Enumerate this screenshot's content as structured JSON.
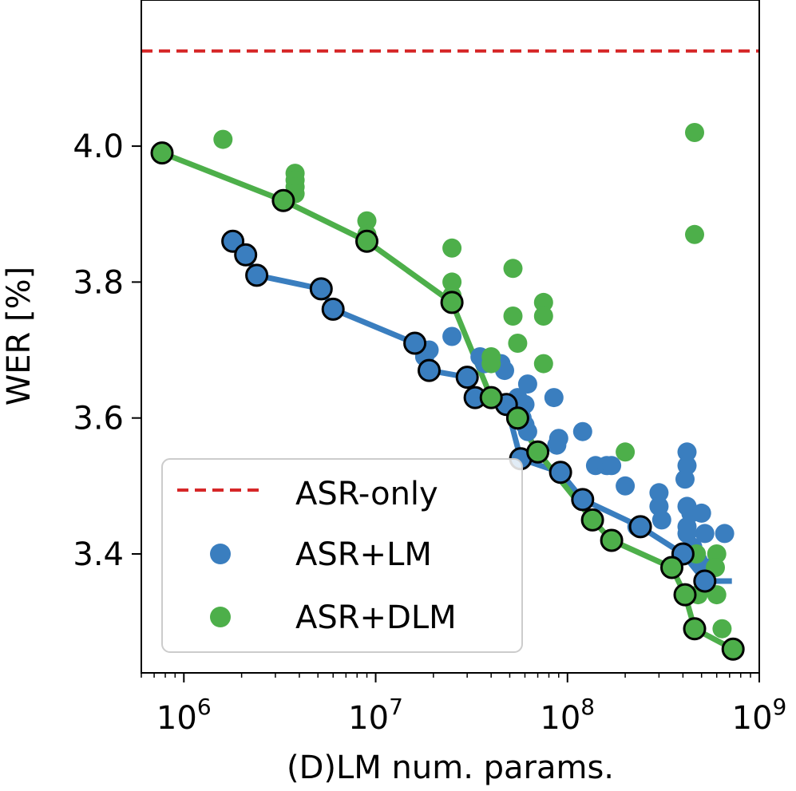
{
  "chart_data": {
    "type": "scatter",
    "title": "",
    "xlabel": "(D)LM num. params.",
    "ylabel": "WER [%]",
    "xscale": "log",
    "xlim": [
      600000,
      1000000000
    ],
    "ylim": [
      3.225,
      4.215
    ],
    "x_ticks": [
      {
        "value": 1000000,
        "base": "10",
        "exp": "6"
      },
      {
        "value": 10000000,
        "base": "10",
        "exp": "7"
      },
      {
        "value": 100000000,
        "base": "10",
        "exp": "8"
      },
      {
        "value": 1000000000,
        "base": "10",
        "exp": "9"
      }
    ],
    "y_ticks": [
      {
        "value": 3.4,
        "label": "3.4"
      },
      {
        "value": 3.6,
        "label": "3.6"
      },
      {
        "value": 3.8,
        "label": "3.8"
      },
      {
        "value": 4.0,
        "label": "4.0"
      }
    ],
    "legend_position": "bottom-left",
    "series": [
      {
        "name": "ASR-only",
        "kind": "hline",
        "color": "#d62728",
        "y": 4.14
      },
      {
        "name": "ASR+LM",
        "kind": "scatter+frontier",
        "color": "#3a7ebf",
        "points": [
          [
            25000000,
            3.72
          ],
          [
            19000000,
            3.7
          ],
          [
            18000000,
            3.69
          ],
          [
            35000000,
            3.69
          ],
          [
            37000000,
            3.68
          ],
          [
            45000000,
            3.68
          ],
          [
            47000000,
            3.67
          ],
          [
            55000000,
            3.63
          ],
          [
            62000000,
            3.65
          ],
          [
            60000000,
            3.62
          ],
          [
            58000000,
            3.6
          ],
          [
            60000000,
            3.59
          ],
          [
            62000000,
            3.58
          ],
          [
            85000000,
            3.63
          ],
          [
            90000000,
            3.57
          ],
          [
            88000000,
            3.56
          ],
          [
            120000000,
            3.58
          ],
          [
            140000000,
            3.53
          ],
          [
            160000000,
            3.53
          ],
          [
            170000000,
            3.53
          ],
          [
            200000000,
            3.5
          ],
          [
            230000000,
            3.44
          ],
          [
            300000000,
            3.49
          ],
          [
            300000000,
            3.47
          ],
          [
            310000000,
            3.45
          ],
          [
            420000000,
            3.55
          ],
          [
            420000000,
            3.53
          ],
          [
            410000000,
            3.51
          ],
          [
            420000000,
            3.47
          ],
          [
            440000000,
            3.46
          ],
          [
            420000000,
            3.44
          ],
          [
            420000000,
            3.43
          ],
          [
            500000000,
            3.46
          ],
          [
            520000000,
            3.43
          ],
          [
            660000000,
            3.43
          ],
          [
            450000000,
            3.41
          ],
          [
            480000000,
            3.39
          ],
          [
            520000000,
            3.38
          ]
        ],
        "frontier": [
          [
            1800000,
            3.86
          ],
          [
            2100000,
            3.84
          ],
          [
            2400000,
            3.81
          ],
          [
            5200000,
            3.79
          ],
          [
            6000000,
            3.76
          ],
          [
            16000000,
            3.71
          ],
          [
            19000000,
            3.67
          ],
          [
            30000000,
            3.66
          ],
          [
            33000000,
            3.63
          ],
          [
            48000000,
            3.62
          ],
          [
            57000000,
            3.54
          ],
          [
            92000000,
            3.52
          ],
          [
            120000000,
            3.48
          ],
          [
            240000000,
            3.44
          ],
          [
            400000000,
            3.4
          ],
          [
            520000000,
            3.36
          ]
        ],
        "frontier_line_end": [
          720000000,
          3.36
        ]
      },
      {
        "name": "ASR+DLM",
        "kind": "scatter+frontier",
        "color": "#4daf4a",
        "points": [
          [
            1600000,
            4.01
          ],
          [
            3800000,
            3.96
          ],
          [
            3800000,
            3.95
          ],
          [
            3800000,
            3.94
          ],
          [
            3800000,
            3.93
          ],
          [
            9000000,
            3.89
          ],
          [
            9000000,
            3.87
          ],
          [
            25000000,
            3.85
          ],
          [
            25000000,
            3.8
          ],
          [
            25000000,
            3.78
          ],
          [
            52000000,
            3.82
          ],
          [
            52000000,
            3.75
          ],
          [
            55000000,
            3.71
          ],
          [
            75000000,
            3.77
          ],
          [
            75000000,
            3.75
          ],
          [
            75000000,
            3.68
          ],
          [
            40000000,
            3.69
          ],
          [
            40000000,
            3.68
          ],
          [
            200000000,
            3.55
          ],
          [
            460000000,
            4.02
          ],
          [
            460000000,
            3.87
          ],
          [
            470000000,
            3.4
          ],
          [
            600000000,
            3.4
          ],
          [
            590000000,
            3.38
          ],
          [
            520000000,
            3.36
          ],
          [
            600000000,
            3.34
          ],
          [
            480000000,
            3.34
          ],
          [
            640000000,
            3.29
          ]
        ],
        "frontier": [
          [
            770000,
            3.99
          ],
          [
            3300000,
            3.92
          ],
          [
            9000000,
            3.86
          ],
          [
            25000000,
            3.77
          ],
          [
            40000000,
            3.63
          ],
          [
            55000000,
            3.6
          ],
          [
            70000000,
            3.55
          ],
          [
            135000000,
            3.45
          ],
          [
            170000000,
            3.42
          ],
          [
            350000000,
            3.38
          ],
          [
            410000000,
            3.34
          ],
          [
            460000000,
            3.29
          ],
          [
            730000000,
            3.26
          ]
        ]
      }
    ]
  }
}
